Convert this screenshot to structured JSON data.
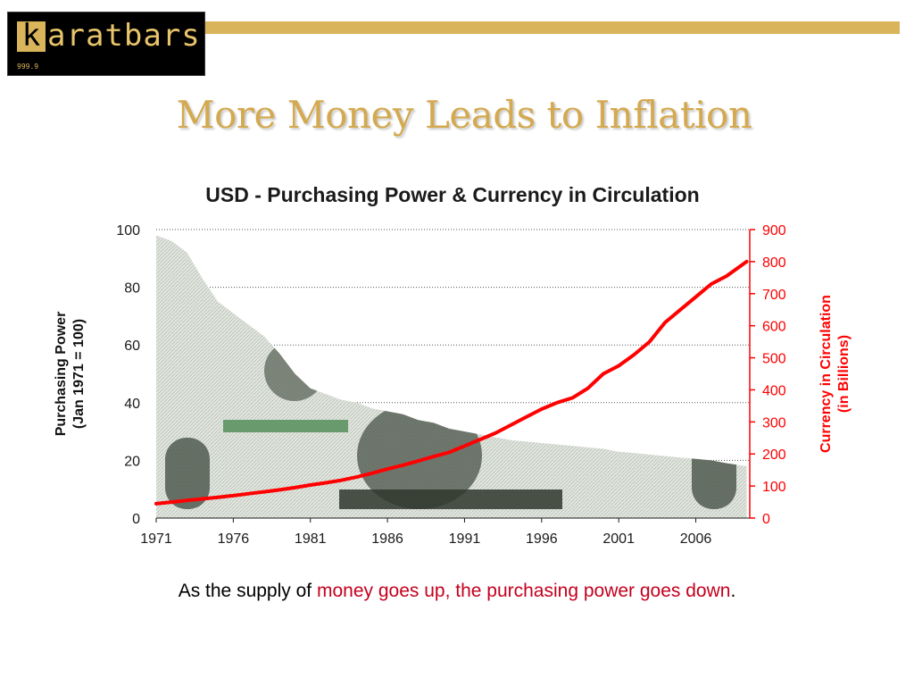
{
  "logo": {
    "k_letter": "k",
    "rest": "aratbars",
    "subtext": "999.9"
  },
  "slide": {
    "title": "More Money Leads to Inflation",
    "caption_part1": "As the supply of ",
    "caption_red": "money goes up, the purchasing power goes down",
    "caption_end": "."
  },
  "colors": {
    "gold": "#d9b45a",
    "title_gold": "#d4a94f",
    "currency_red": "#ff0000",
    "caption_red": "#c4001e",
    "bill_green": "#5c6b58"
  },
  "chart_data": {
    "type": "line",
    "title": "USD - Purchasing Power & Currency in Circulation",
    "x_ticks": [
      "1971",
      "1976",
      "1981",
      "1986",
      "1991",
      "1996",
      "2001",
      "2006"
    ],
    "xlim": [
      1971,
      2009.5
    ],
    "grid": "horizontal dotted",
    "series": [
      {
        "axis": "left",
        "ylabel": [
          "Purchasing Power",
          "(Jan 1971 = 100)"
        ],
        "ylim": [
          0,
          100
        ],
        "y_ticks": [
          "0",
          "20",
          "40",
          "60",
          "80",
          "100"
        ],
        "fill": "dollar-bill image",
        "x": [
          1971,
          1972,
          1973,
          1974,
          1975,
          1976,
          1977,
          1978,
          1979,
          1980,
          1981,
          1982,
          1983,
          1984,
          1985,
          1986,
          1987,
          1988,
          1989,
          1990,
          1991,
          1992,
          1993,
          1994,
          1995,
          1996,
          1997,
          1998,
          1999,
          2000,
          2001,
          2002,
          2003,
          2004,
          2005,
          2006,
          2007,
          2008,
          2009.3
        ],
        "values": [
          98,
          96,
          92,
          83,
          75,
          71,
          67,
          63,
          57,
          50,
          45,
          43,
          41,
          40,
          38,
          37,
          36,
          34,
          33,
          31,
          30,
          29,
          28,
          27,
          26.5,
          26,
          25.5,
          25,
          24.5,
          24,
          23,
          22.5,
          22,
          21.5,
          21,
          20.5,
          20,
          19,
          18
        ]
      },
      {
        "axis": "right",
        "ylabel": [
          "Currency in Circulation",
          "(in Billions)"
        ],
        "ylim": [
          0,
          900
        ],
        "y_ticks": [
          "0",
          "100",
          "200",
          "300",
          "400",
          "500",
          "600",
          "700",
          "800",
          "900"
        ],
        "color": "#ff0000",
        "x": [
          1971,
          1972,
          1973,
          1974,
          1975,
          1976,
          1977,
          1978,
          1979,
          1980,
          1981,
          1982,
          1983,
          1984,
          1985,
          1986,
          1987,
          1988,
          1989,
          1990,
          1991,
          1992,
          1993,
          1994,
          1995,
          1996,
          1997,
          1998,
          1999,
          2000,
          2001,
          2002,
          2003,
          2004,
          2005,
          2006,
          2007,
          2008,
          2009.3
        ],
        "values": [
          45,
          50,
          55,
          60,
          65,
          70,
          76,
          82,
          88,
          95,
          103,
          110,
          118,
          128,
          140,
          153,
          165,
          178,
          192,
          205,
          225,
          245,
          265,
          290,
          315,
          340,
          360,
          375,
          405,
          450,
          475,
          510,
          550,
          610,
          650,
          690,
          730,
          755,
          800
        ]
      }
    ]
  }
}
